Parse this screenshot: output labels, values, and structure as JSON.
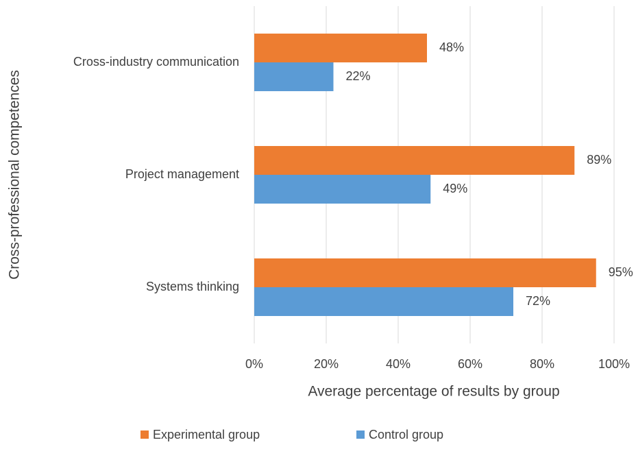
{
  "chart_data": {
    "type": "barh",
    "categories": [
      "Cross-industry communication",
      "Project management",
      "Systems thinking"
    ],
    "series": [
      {
        "name": "Experimental group",
        "color": "#ed7d31",
        "values": [
          48,
          89,
          95
        ],
        "value_labels": [
          "48%",
          "89%",
          "95%"
        ]
      },
      {
        "name": "Control group",
        "color": "#5b9bd5",
        "values": [
          22,
          49,
          72
        ],
        "value_labels": [
          "22%",
          "49%",
          "72%"
        ]
      }
    ],
    "xlim": [
      0,
      100
    ],
    "xticks": [
      {
        "value": 0,
        "label": "0%"
      },
      {
        "value": 20,
        "label": "20%"
      },
      {
        "value": 40,
        "label": "40%"
      },
      {
        "value": 60,
        "label": "60%"
      },
      {
        "value": 80,
        "label": "80%"
      },
      {
        "value": 100,
        "label": "100%"
      }
    ],
    "xlabel": "Average percentage of results by group",
    "ylabel": "Cross-professional competences",
    "grid": true,
    "legend": "bottom"
  }
}
